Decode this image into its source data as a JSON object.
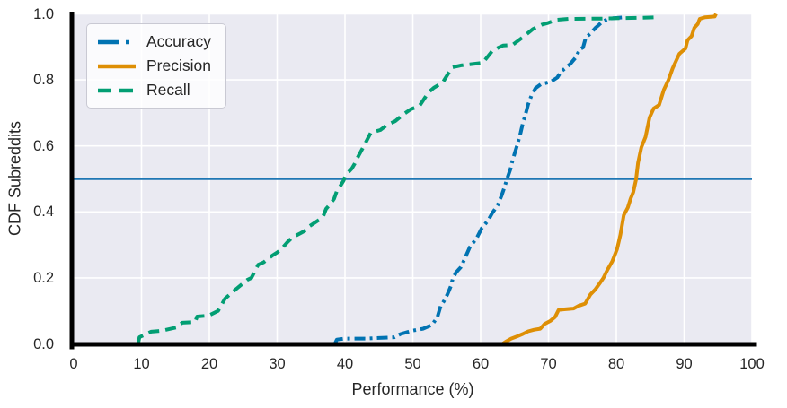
{
  "figure": {
    "background": "#ffffff"
  },
  "chart_data": {
    "type": "line",
    "subtype": "cdf-curves",
    "title": "",
    "xlabel": "Performance (%)",
    "ylabel": "CDF Subreddits",
    "xlim": [
      0,
      100
    ],
    "ylim": [
      0,
      1
    ],
    "xticks": [
      0,
      10,
      20,
      30,
      40,
      50,
      60,
      70,
      80,
      90,
      100
    ],
    "yticks": [
      0,
      0.2,
      0.4,
      0.6,
      0.8,
      1.0
    ],
    "ytick_labels": [
      "0.0",
      "0.2",
      "0.4",
      "0.6",
      "0.8",
      "1.0"
    ],
    "grid": true,
    "plot_background": "#eaeaf2",
    "grid_color": "#ffffff",
    "spine_color": "#000000",
    "tick_label_color": "#262626",
    "reference_line": {
      "y": 0.5,
      "color": "#1f77b4"
    },
    "legend": {
      "position": "upper-left"
    },
    "series": [
      {
        "name": "Accuracy",
        "color": "#0173b2",
        "linestyle": "dashdot",
        "points": [
          [
            38.5,
            0
          ],
          [
            38.8,
            0.013
          ],
          [
            40,
            0.016
          ],
          [
            43,
            0.016
          ],
          [
            45,
            0.018
          ],
          [
            47.3,
            0.02
          ],
          [
            48.2,
            0.03
          ],
          [
            49.9,
            0.04
          ],
          [
            51.5,
            0.046
          ],
          [
            52.8,
            0.057
          ],
          [
            53.6,
            0.08
          ],
          [
            54.1,
            0.115
          ],
          [
            54.6,
            0.13
          ],
          [
            55.1,
            0.15
          ],
          [
            55.6,
            0.175
          ],
          [
            55.9,
            0.198
          ],
          [
            56.4,
            0.217
          ],
          [
            57.1,
            0.233
          ],
          [
            57.7,
            0.26
          ],
          [
            58.4,
            0.293
          ],
          [
            59.4,
            0.32
          ],
          [
            60.2,
            0.352
          ],
          [
            61.1,
            0.374
          ],
          [
            61.7,
            0.396
          ],
          [
            62.5,
            0.42
          ],
          [
            63.1,
            0.45
          ],
          [
            63.5,
            0.474
          ],
          [
            63.9,
            0.5
          ],
          [
            64.4,
            0.53
          ],
          [
            64.7,
            0.556
          ],
          [
            65.1,
            0.583
          ],
          [
            65.5,
            0.61
          ],
          [
            65.9,
            0.64
          ],
          [
            66.2,
            0.667
          ],
          [
            66.6,
            0.694
          ],
          [
            67,
            0.726
          ],
          [
            67.5,
            0.753
          ],
          [
            68.1,
            0.775
          ],
          [
            68.9,
            0.787
          ],
          [
            70.3,
            0.794
          ],
          [
            71.3,
            0.807
          ],
          [
            71.9,
            0.826
          ],
          [
            72.5,
            0.836
          ],
          [
            73.2,
            0.848
          ],
          [
            74.1,
            0.87
          ],
          [
            74.6,
            0.893
          ],
          [
            75.1,
            0.898
          ],
          [
            75.5,
            0.928
          ],
          [
            76.3,
            0.943
          ],
          [
            76.9,
            0.957
          ],
          [
            77.4,
            0.966
          ],
          [
            77.9,
            0.976
          ],
          [
            78.7,
            0.984
          ],
          [
            79.5,
            0.987
          ],
          [
            81.3,
            0.99
          ]
        ]
      },
      {
        "name": "Precision",
        "color": "#de8f05",
        "linestyle": "solid",
        "points": [
          [
            63.2,
            0
          ],
          [
            63.8,
            0.008
          ],
          [
            64.5,
            0.016
          ],
          [
            65.3,
            0.022
          ],
          [
            66.2,
            0.03
          ],
          [
            67,
            0.038
          ],
          [
            67.9,
            0.043
          ],
          [
            68.8,
            0.046
          ],
          [
            69.4,
            0.06
          ],
          [
            70.3,
            0.07
          ],
          [
            71,
            0.082
          ],
          [
            71.5,
            0.103
          ],
          [
            72.5,
            0.105
          ],
          [
            73.7,
            0.107
          ],
          [
            74.4,
            0.115
          ],
          [
            75.4,
            0.122
          ],
          [
            76.2,
            0.15
          ],
          [
            76.9,
            0.165
          ],
          [
            77.6,
            0.185
          ],
          [
            78.1,
            0.2
          ],
          [
            78.7,
            0.225
          ],
          [
            79.4,
            0.25
          ],
          [
            80.1,
            0.287
          ],
          [
            80.6,
            0.33
          ],
          [
            81.1,
            0.39
          ],
          [
            81.7,
            0.413
          ],
          [
            82.1,
            0.44
          ],
          [
            82.5,
            0.46
          ],
          [
            82.9,
            0.497
          ],
          [
            83.2,
            0.549
          ],
          [
            83.7,
            0.596
          ],
          [
            84.3,
            0.627
          ],
          [
            84.9,
            0.686
          ],
          [
            85.5,
            0.713
          ],
          [
            86.3,
            0.724
          ],
          [
            87,
            0.77
          ],
          [
            87.7,
            0.8
          ],
          [
            88.3,
            0.835
          ],
          [
            89.3,
            0.879
          ],
          [
            90.2,
            0.895
          ],
          [
            90.5,
            0.92
          ],
          [
            91.1,
            0.933
          ],
          [
            91.5,
            0.958
          ],
          [
            92,
            0.969
          ],
          [
            92.3,
            0.985
          ],
          [
            93.1,
            0.99
          ],
          [
            94.5,
            0.992
          ],
          [
            94.7,
            1
          ]
        ]
      },
      {
        "name": "Recall",
        "color": "#029e73",
        "linestyle": "dashed",
        "points": [
          [
            9.5,
            0
          ],
          [
            9.7,
            0.02
          ],
          [
            11.4,
            0.037
          ],
          [
            13,
            0.04
          ],
          [
            15.2,
            0.05
          ],
          [
            16,
            0.064
          ],
          [
            17.9,
            0.066
          ],
          [
            18.2,
            0.083
          ],
          [
            19.9,
            0.086
          ],
          [
            21.3,
            0.1
          ],
          [
            22.3,
            0.137
          ],
          [
            24,
            0.167
          ],
          [
            25.6,
            0.194
          ],
          [
            26.2,
            0.2
          ],
          [
            27.2,
            0.24
          ],
          [
            28,
            0.247
          ],
          [
            29.3,
            0.268
          ],
          [
            30,
            0.277
          ],
          [
            30.7,
            0.289
          ],
          [
            31.5,
            0.308
          ],
          [
            32.2,
            0.322
          ],
          [
            33.5,
            0.336
          ],
          [
            34.2,
            0.344
          ],
          [
            34.8,
            0.357
          ],
          [
            36.2,
            0.376
          ],
          [
            36.8,
            0.387
          ],
          [
            37.2,
            0.409
          ],
          [
            37.9,
            0.425
          ],
          [
            38.4,
            0.44
          ],
          [
            38.8,
            0.463
          ],
          [
            39.3,
            0.478
          ],
          [
            39.8,
            0.495
          ],
          [
            40.1,
            0.512
          ],
          [
            41,
            0.531
          ],
          [
            41.4,
            0.545
          ],
          [
            42,
            0.57
          ],
          [
            42.8,
            0.6
          ],
          [
            43.8,
            0.64
          ],
          [
            45.2,
            0.648
          ],
          [
            46.1,
            0.662
          ],
          [
            47.4,
            0.675
          ],
          [
            48.7,
            0.697
          ],
          [
            49.7,
            0.711
          ],
          [
            51,
            0.722
          ],
          [
            52.3,
            0.762
          ],
          [
            53.1,
            0.776
          ],
          [
            54.4,
            0.792
          ],
          [
            55.8,
            0.838
          ],
          [
            57.1,
            0.844
          ],
          [
            58.4,
            0.847
          ],
          [
            60.3,
            0.852
          ],
          [
            61.8,
            0.89
          ],
          [
            63.3,
            0.904
          ],
          [
            64.7,
            0.906
          ],
          [
            66.4,
            0.932
          ],
          [
            67.7,
            0.954
          ],
          [
            69,
            0.967
          ],
          [
            70,
            0.973
          ],
          [
            71.2,
            0.982
          ],
          [
            73,
            0.985
          ],
          [
            78,
            0.986
          ],
          [
            83,
            0.988
          ],
          [
            86.2,
            0.99
          ]
        ]
      }
    ]
  }
}
